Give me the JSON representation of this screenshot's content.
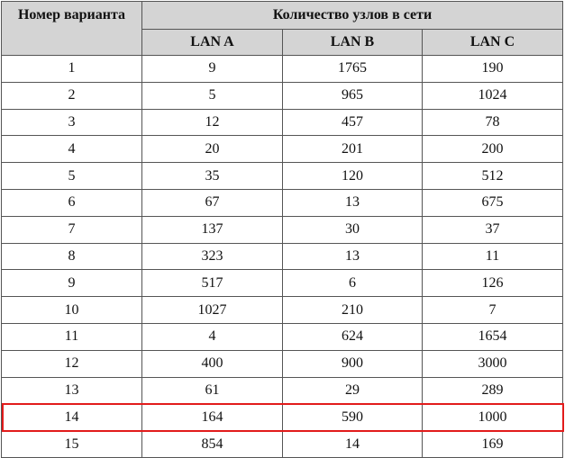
{
  "table": {
    "variant_header": "Номер варианта",
    "group_header": "Количество узлов в сети",
    "columns": [
      "LAN A",
      "LAN B",
      "LAN C"
    ],
    "rows": [
      [
        "1",
        "9",
        "1765",
        "190"
      ],
      [
        "2",
        "5",
        "965",
        "1024"
      ],
      [
        "3",
        "12",
        "457",
        "78"
      ],
      [
        "4",
        "20",
        "201",
        "200"
      ],
      [
        "5",
        "35",
        "120",
        "512"
      ],
      [
        "6",
        "67",
        "13",
        "675"
      ],
      [
        "7",
        "137",
        "30",
        "37"
      ],
      [
        "8",
        "323",
        "13",
        "11"
      ],
      [
        "9",
        "517",
        "6",
        "126"
      ],
      [
        "10",
        "1027",
        "210",
        "7"
      ],
      [
        "11",
        "4",
        "624",
        "1654"
      ],
      [
        "12",
        "400",
        "900",
        "3000"
      ],
      [
        "13",
        "61",
        "29",
        "289"
      ],
      [
        "14",
        "164",
        "590",
        "1000"
      ],
      [
        "15",
        "854",
        "14",
        "169"
      ]
    ]
  },
  "highlight": {
    "row_index": 13,
    "color": "#e21b1b"
  }
}
